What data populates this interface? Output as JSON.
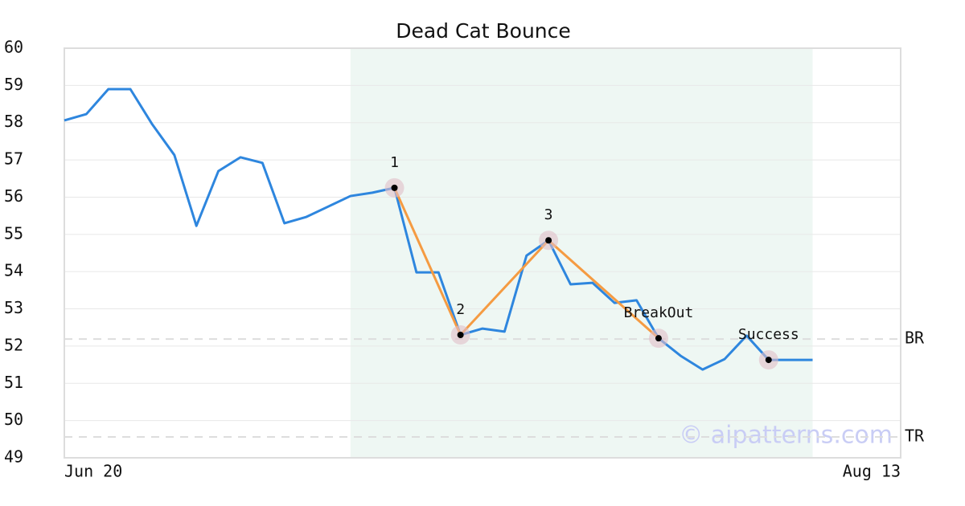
{
  "chart_data": {
    "type": "line",
    "title": "Dead Cat Bounce",
    "x": [
      0,
      1,
      2,
      3,
      4,
      5,
      6,
      7,
      8,
      9,
      10,
      11,
      12,
      13,
      14,
      15,
      16,
      17,
      18,
      19,
      20,
      21,
      22,
      23,
      24,
      25,
      26,
      27,
      28,
      29,
      30,
      31,
      32,
      33,
      34
    ],
    "series": [
      {
        "color": "#2e86de",
        "values": [
          58.06,
          58.23,
          58.9,
          58.9,
          57.95,
          57.13,
          55.23,
          56.7,
          57.07,
          56.92,
          55.3,
          55.47,
          55.75,
          56.03,
          56.12,
          56.25,
          53.98,
          53.98,
          52.3,
          52.47,
          52.39,
          54.43,
          54.84,
          53.66,
          53.7,
          53.16,
          53.23,
          52.21,
          51.74,
          51.37,
          51.65,
          52.28,
          51.63,
          51.63,
          51.63
        ]
      }
    ],
    "xlim": [
      0,
      38
    ],
    "xticks": [
      {
        "value": 0,
        "label": "Jun 20"
      },
      {
        "value": 38,
        "label": "Aug 13"
      }
    ],
    "ylim": [
      49,
      60
    ],
    "yticks": [
      49,
      50,
      51,
      52,
      53,
      54,
      55,
      56,
      57,
      58,
      59,
      60
    ],
    "grid": true,
    "highlight_range": [
      13,
      34
    ],
    "highlight_color": "#eef7f3",
    "pattern": {
      "color": "#f59b42",
      "connected": 4,
      "points": [
        {
          "x": 15,
          "y": 56.25,
          "label": "1"
        },
        {
          "x": 18,
          "y": 52.3,
          "label": "2"
        },
        {
          "x": 22,
          "y": 54.84,
          "label": "3"
        },
        {
          "x": 27,
          "y": 52.21,
          "label": "BreakOut"
        },
        {
          "x": 32,
          "y": 51.63,
          "label": "Success"
        }
      ]
    },
    "levels": [
      {
        "label": "BR",
        "value": 52.19
      },
      {
        "label": "TR",
        "value": 49.56
      }
    ],
    "watermark": "© aipatterns.com"
  }
}
